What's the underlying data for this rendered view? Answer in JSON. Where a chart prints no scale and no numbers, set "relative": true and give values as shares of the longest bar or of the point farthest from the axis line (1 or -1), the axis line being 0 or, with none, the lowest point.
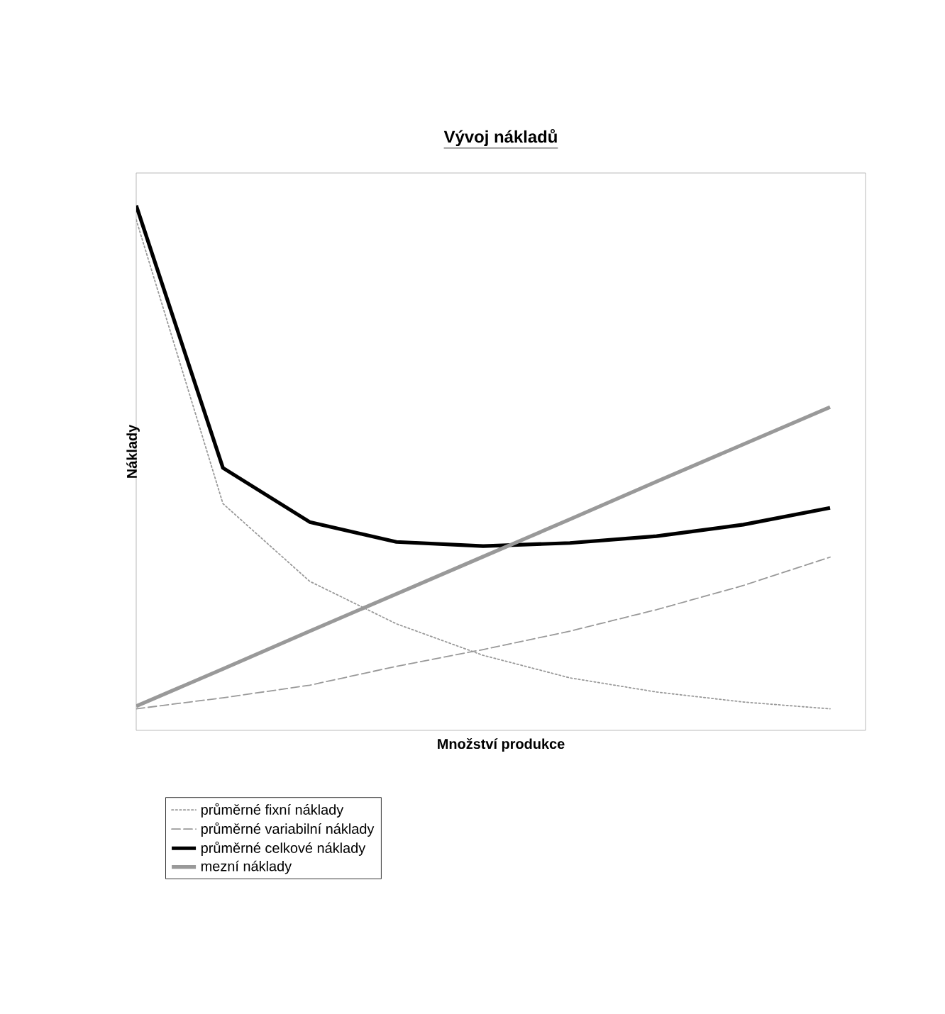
{
  "chart_data": {
    "type": "line",
    "relative": true,
    "title": "Vývoj nákladů",
    "xlabel": "Množství produkce",
    "ylabel": "Náklady",
    "legend": "bottom",
    "categories": [
      null,
      null,
      null,
      null,
      null,
      null,
      null,
      null,
      null
    ],
    "series": [
      {
        "name": "průměrné fixní náklady",
        "color": "#999999",
        "line_style": "dotted",
        "values": [
          0.973,
          0.432,
          0.284,
          0.203,
          0.143,
          0.1,
          0.073,
          0.054,
          0.041
        ]
      },
      {
        "name": "průměrné variabilní náklady",
        "color": "#999999",
        "line_style": "dashed",
        "values": [
          0.041,
          0.062,
          0.086,
          0.122,
          0.154,
          0.189,
          0.23,
          0.276,
          0.33
        ]
      },
      {
        "name": "průměrné celkové náklady",
        "color": "#000000",
        "line_style": "solid",
        "values": [
          1.0,
          0.5,
          0.397,
          0.359,
          0.351,
          0.357,
          0.37,
          0.392,
          0.424
        ]
      },
      {
        "name": "mezní náklady",
        "color": "#999999",
        "line_style": "solid",
        "values": [
          0.046,
          0.117,
          0.189,
          0.26,
          0.331,
          0.402,
          0.474,
          0.545,
          0.616
        ]
      }
    ]
  }
}
